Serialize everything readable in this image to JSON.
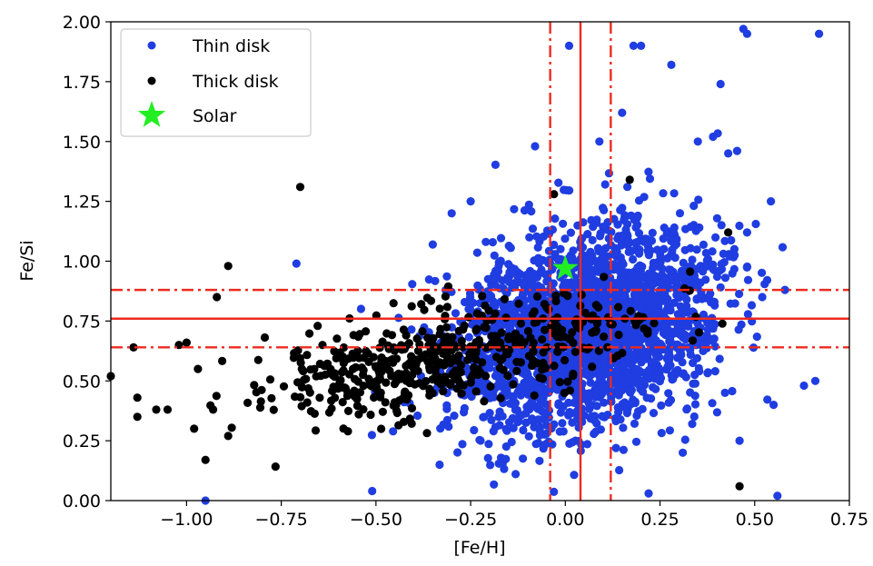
{
  "chart_data": {
    "type": "scatter",
    "xlabel": "[Fe/H]",
    "ylabel": "Fe/Si",
    "xlim": [
      -1.2,
      0.75
    ],
    "ylim": [
      0.0,
      2.0
    ],
    "xticks": [
      -1.0,
      -0.75,
      -0.5,
      -0.25,
      0.0,
      0.25,
      0.5,
      0.75
    ],
    "xtick_labels": [
      "−1.00",
      "−0.75",
      "−0.50",
      "−0.25",
      "0.00",
      "0.25",
      "0.50",
      "0.75"
    ],
    "yticks": [
      0.0,
      0.25,
      0.5,
      0.75,
      1.0,
      1.25,
      1.5,
      1.75,
      2.0
    ],
    "ytick_labels": [
      "0.00",
      "0.25",
      "0.50",
      "0.75",
      "1.00",
      "1.25",
      "1.50",
      "1.75",
      "2.00"
    ],
    "grid": false,
    "legend_position": "top-left",
    "series": [
      {
        "name": "Thin disk",
        "color": "#1f3de0",
        "marker": "circle",
        "cloud": {
          "count": 2600,
          "x_mean": 0.05,
          "x_sd": 0.17,
          "y_mean": 0.72,
          "y_sd": 0.2,
          "slope": 0.35,
          "seed": 11
        },
        "points": [
          [
            0.67,
            1.95
          ],
          [
            0.47,
            1.97
          ],
          [
            0.48,
            1.95
          ],
          [
            0.01,
            1.9
          ],
          [
            0.18,
            1.9
          ],
          [
            0.2,
            1.9
          ],
          [
            0.28,
            1.82
          ],
          [
            0.41,
            1.74
          ],
          [
            0.15,
            1.62
          ],
          [
            -0.08,
            1.48
          ],
          [
            0.09,
            1.5
          ],
          [
            0.35,
            1.5
          ],
          [
            0.39,
            1.52
          ],
          [
            0.43,
            1.45
          ],
          [
            -0.71,
            0.99
          ],
          [
            -0.95,
            0.0
          ],
          [
            -0.51,
            0.04
          ],
          [
            0.56,
            0.02
          ],
          [
            0.55,
            0.4
          ],
          [
            0.66,
            0.5
          ],
          [
            0.63,
            0.48
          ],
          [
            0.52,
            0.85
          ],
          [
            0.58,
            0.88
          ],
          [
            0.48,
            1.12
          ],
          [
            -0.35,
            1.07
          ],
          [
            -0.25,
            1.25
          ],
          [
            -0.3,
            1.2
          ],
          [
            0.22,
            0.03
          ],
          [
            0.31,
            0.2
          ],
          [
            0.46,
            0.25
          ]
        ]
      },
      {
        "name": "Thick disk",
        "color": "#000000",
        "marker": "circle",
        "cloud": {
          "count": 520,
          "x_mean": -0.32,
          "x_sd": 0.25,
          "y_mean": 0.6,
          "y_sd": 0.1,
          "slope": 0.28,
          "seed": 29
        },
        "points": [
          [
            -0.7,
            1.31
          ],
          [
            -0.89,
            0.98
          ],
          [
            -0.92,
            0.85
          ],
          [
            -1.2,
            0.52
          ],
          [
            -1.14,
            0.64
          ],
          [
            -1.13,
            0.43
          ],
          [
            -1.13,
            0.35
          ],
          [
            -1.08,
            0.38
          ],
          [
            -1.0,
            0.66
          ],
          [
            -1.02,
            0.65
          ],
          [
            -0.95,
            0.17
          ],
          [
            -0.93,
            0.38
          ],
          [
            -0.89,
            0.27
          ],
          [
            0.17,
            1.34
          ],
          [
            0.43,
            1.12
          ],
          [
            0.46,
            0.06
          ],
          [
            -0.03,
            1.28
          ],
          [
            -1.05,
            0.38
          ],
          [
            -0.97,
            0.55
          ],
          [
            -0.98,
            0.3
          ]
        ]
      },
      {
        "name": "Solar",
        "color": "#22ee22",
        "marker": "star",
        "points": [
          [
            0.0,
            0.97
          ]
        ]
      }
    ],
    "reference_lines": {
      "color": "#ee2a1e",
      "vertical_solid": [
        0.04
      ],
      "vertical_dashdot": [
        -0.04,
        0.12
      ],
      "horizontal_solid": [
        0.76
      ],
      "horizontal_dashdot": [
        0.64,
        0.88
      ]
    }
  }
}
